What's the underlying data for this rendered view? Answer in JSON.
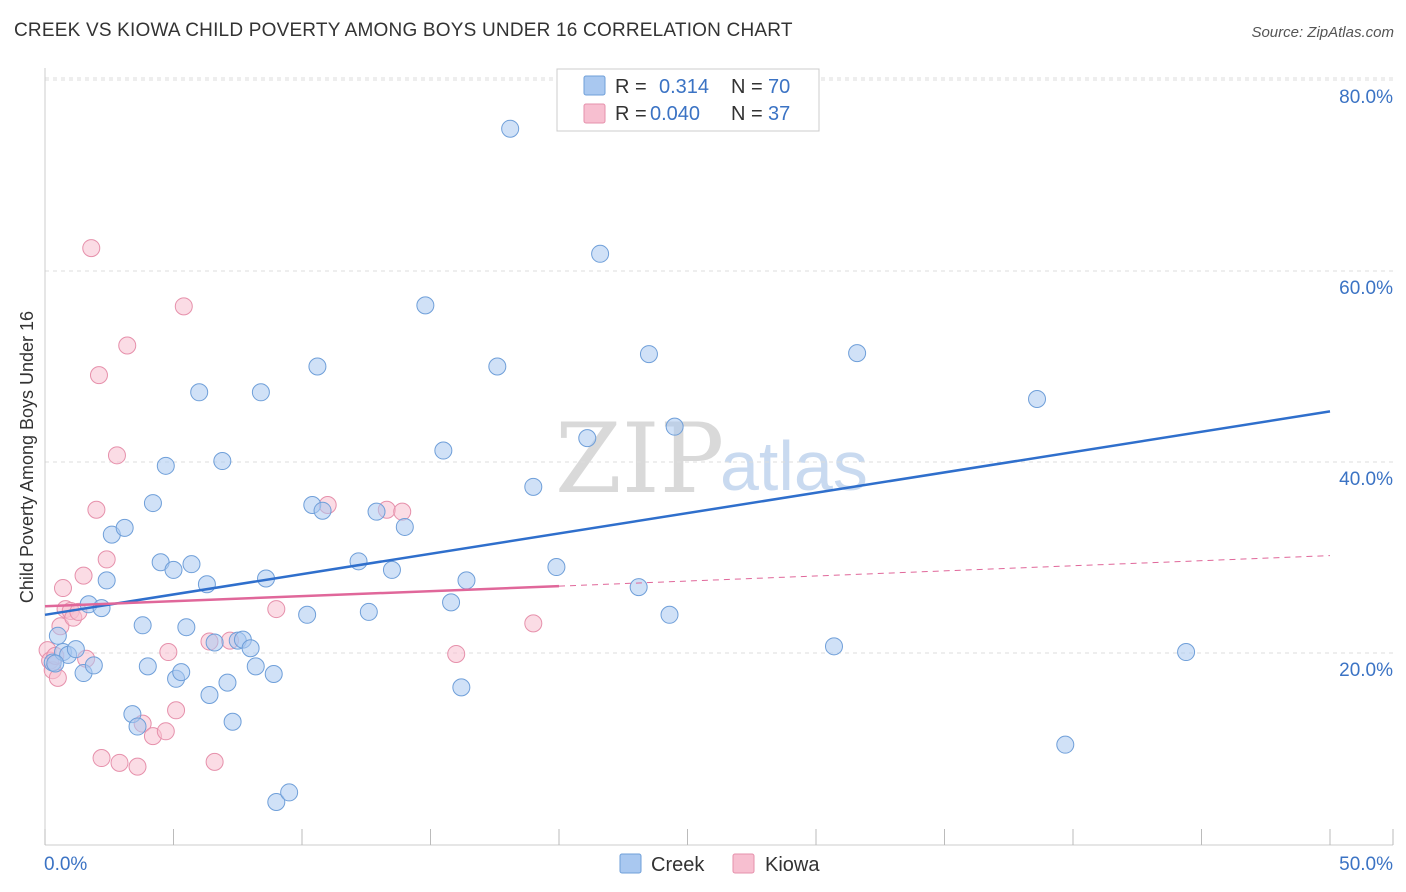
{
  "title": "CREEK VS KIOWA CHILD POVERTY AMONG BOYS UNDER 16 CORRELATION CHART",
  "source": "Source: ZipAtlas.com",
  "colors": {
    "creek_fill": "#a9c8f0",
    "creek_stroke": "#6f9fd9",
    "creek_line": "#2f6fcc",
    "kiowa_fill": "#f7bfd0",
    "kiowa_stroke": "#e690ab",
    "kiowa_line": "#e0679a",
    "grid": "#dddddd",
    "tick_text": "#3b73c4"
  },
  "legend": {
    "creek": {
      "r_label": "R =",
      "r_value": "0.314",
      "n_label": "N =",
      "n_value": "70"
    },
    "kiowa": {
      "r_label": "R =",
      "r_value": "0.040",
      "n_label": "N =",
      "n_value": "37"
    }
  },
  "watermark": {
    "zip": "ZIP",
    "atlas": "atlas"
  },
  "chart_data": {
    "type": "scatter",
    "title": "CREEK VS KIOWA CHILD POVERTY AMONG BOYS UNDER 16 CORRELATION CHART",
    "xlabel": "",
    "ylabel": "Child Poverty Among Boys Under 16",
    "xlim": [
      0,
      50
    ],
    "ylim": [
      0,
      82
    ],
    "x_tick_labels": [
      "0.0%",
      "50.0%"
    ],
    "y_ticks": [
      20,
      40,
      60,
      80
    ],
    "y_tick_labels": [
      "20.0%",
      "40.0%",
      "60.0%",
      "80.0%"
    ],
    "series": [
      {
        "name": "Creek",
        "R": 0.314,
        "N": 70,
        "trend": {
          "x0": 0,
          "y0": 24.0,
          "x1": 50,
          "y1": 45.3
        },
        "points": [
          [
            0.3,
            19.0
          ],
          [
            0.5,
            21.8
          ],
          [
            0.7,
            20.1
          ],
          [
            0.9,
            19.8
          ],
          [
            1.2,
            20.4
          ],
          [
            1.5,
            17.9
          ],
          [
            1.7,
            25.1
          ],
          [
            1.9,
            18.7
          ],
          [
            2.2,
            24.7
          ],
          [
            2.4,
            27.6
          ],
          [
            2.6,
            32.4
          ],
          [
            3.1,
            33.1
          ],
          [
            3.4,
            13.6
          ],
          [
            3.6,
            12.3
          ],
          [
            3.8,
            22.9
          ],
          [
            4.0,
            18.6
          ],
          [
            4.2,
            35.7
          ],
          [
            4.5,
            29.5
          ],
          [
            4.7,
            39.6
          ],
          [
            5.0,
            28.7
          ],
          [
            5.1,
            17.3
          ],
          [
            5.3,
            18.0
          ],
          [
            5.5,
            22.7
          ],
          [
            5.7,
            29.3
          ],
          [
            6.0,
            47.3
          ],
          [
            6.3,
            27.2
          ],
          [
            6.4,
            15.6
          ],
          [
            6.6,
            21.1
          ],
          [
            6.9,
            40.1
          ],
          [
            7.1,
            16.9
          ],
          [
            7.3,
            12.8
          ],
          [
            7.5,
            21.3
          ],
          [
            7.7,
            21.4
          ],
          [
            8.0,
            20.5
          ],
          [
            8.2,
            18.6
          ],
          [
            8.4,
            47.3
          ],
          [
            8.6,
            27.8
          ],
          [
            8.9,
            17.8
          ],
          [
            9.0,
            4.4
          ],
          [
            9.5,
            5.4
          ],
          [
            10.2,
            24.0
          ],
          [
            10.4,
            35.5
          ],
          [
            10.6,
            50.0
          ],
          [
            10.8,
            34.9
          ],
          [
            12.2,
            29.6
          ],
          [
            12.6,
            24.3
          ],
          [
            12.9,
            34.8
          ],
          [
            13.5,
            28.7
          ],
          [
            14.0,
            33.2
          ],
          [
            14.8,
            56.4
          ],
          [
            15.5,
            41.2
          ],
          [
            15.8,
            25.3
          ],
          [
            16.2,
            16.4
          ],
          [
            16.4,
            27.6
          ],
          [
            17.6,
            50.0
          ],
          [
            18.1,
            74.9
          ],
          [
            19.0,
            37.4
          ],
          [
            19.9,
            29.0
          ],
          [
            21.1,
            42.5
          ],
          [
            21.6,
            61.8
          ],
          [
            23.1,
            26.9
          ],
          [
            23.5,
            51.3
          ],
          [
            24.3,
            24.0
          ],
          [
            24.5,
            43.7
          ],
          [
            30.7,
            20.7
          ],
          [
            31.6,
            51.4
          ],
          [
            38.6,
            46.6
          ],
          [
            39.7,
            10.4
          ],
          [
            44.4,
            20.1
          ],
          [
            0.4,
            18.9
          ]
        ]
      },
      {
        "name": "Kiowa",
        "R": 0.04,
        "N": 37,
        "trend": {
          "x0": 0,
          "y0": 24.9,
          "x1": 20,
          "y1": 27.0
        },
        "trend_dashed": {
          "x0": 20,
          "y0": 27.0,
          "x1": 50,
          "y1": 30.2
        },
        "points": [
          [
            0.1,
            20.3
          ],
          [
            0.2,
            19.2
          ],
          [
            0.3,
            18.2
          ],
          [
            0.4,
            19.7
          ],
          [
            0.5,
            17.4
          ],
          [
            0.6,
            22.8
          ],
          [
            0.7,
            26.8
          ],
          [
            0.8,
            24.6
          ],
          [
            1.0,
            24.4
          ],
          [
            1.1,
            23.7
          ],
          [
            1.3,
            24.3
          ],
          [
            1.5,
            28.1
          ],
          [
            1.6,
            19.4
          ],
          [
            1.8,
            62.4
          ],
          [
            2.0,
            35.0
          ],
          [
            2.1,
            49.1
          ],
          [
            2.2,
            9.0
          ],
          [
            2.4,
            29.8
          ],
          [
            2.8,
            40.7
          ],
          [
            2.9,
            8.5
          ],
          [
            3.2,
            52.2
          ],
          [
            3.6,
            8.1
          ],
          [
            3.8,
            12.6
          ],
          [
            4.2,
            11.3
          ],
          [
            4.7,
            11.8
          ],
          [
            4.8,
            20.1
          ],
          [
            5.1,
            14.0
          ],
          [
            5.4,
            56.3
          ],
          [
            6.4,
            21.2
          ],
          [
            6.6,
            8.6
          ],
          [
            7.2,
            21.3
          ],
          [
            9.0,
            24.6
          ],
          [
            11.0,
            35.5
          ],
          [
            13.3,
            35.0
          ],
          [
            13.9,
            34.8
          ],
          [
            16.0,
            19.9
          ],
          [
            19.0,
            23.1
          ]
        ]
      }
    ]
  },
  "bottom_legend": {
    "creek": "Creek",
    "kiowa": "Kiowa"
  }
}
